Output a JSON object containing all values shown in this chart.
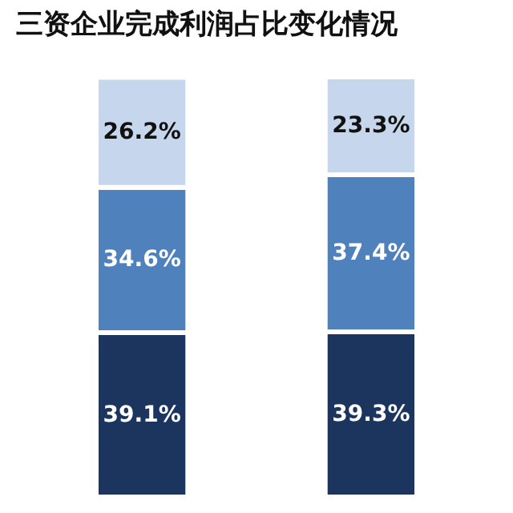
{
  "chart_data": {
    "type": "bar",
    "title": "三资企业完成利润占比变化情况",
    "stacked": true,
    "categories": [
      null,
      null
    ],
    "series": [
      {
        "color": "#1c355e",
        "values": [
          39.1,
          39.3
        ],
        "value_labels": [
          "39.1%",
          "39.3%"
        ]
      },
      {
        "color": "#4f81bd",
        "values": [
          34.6,
          37.4
        ],
        "value_labels": [
          "34.6%",
          "37.4%"
        ]
      },
      {
        "color": "#c6d6ec",
        "values": [
          26.2,
          23.3
        ],
        "value_labels": [
          "26.2%",
          "23.3%"
        ]
      }
    ]
  }
}
